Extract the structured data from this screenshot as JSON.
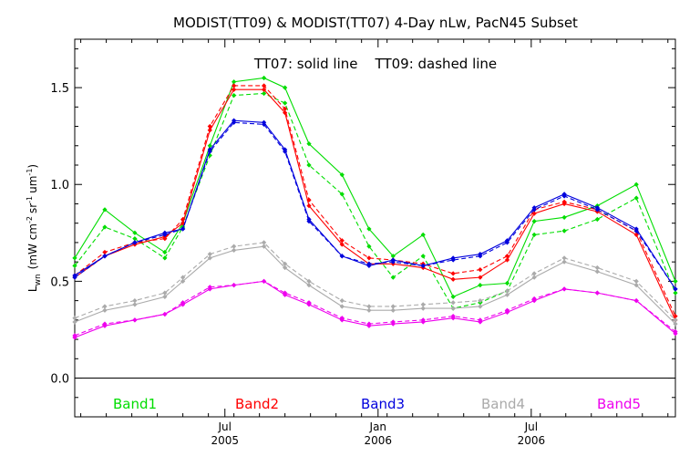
{
  "chart_data": {
    "type": "line",
    "title": "MODIST(TT09) & MODIST(TT07) 4-Day nLw, PacN45 Subset",
    "subtitle": "TT07: solid line    TT09: dashed line",
    "ylabel": "L_wn (mW cm^-2 sr^-1 um^-1)",
    "ylabel_main": "L",
    "ylabel_sub": "wn",
    "ylabel_unit_open": "(mW cm",
    "ylabel_exp1": "-2",
    "ylabel_unit_sr": "sr",
    "ylabel_exp2": "-1",
    "ylabel_unit_um": "um",
    "ylabel_exp3": "-1",
    "ylabel_unit_close": ")",
    "ylim": [
      -0.2,
      1.75
    ],
    "xlim": [
      0,
      20
    ],
    "yticks": [
      {
        "value": 0.0,
        "label": "0.0"
      },
      {
        "value": 0.5,
        "label": "0.5"
      },
      {
        "value": 1.0,
        "label": "1.0"
      },
      {
        "value": 1.5,
        "label": "1.5"
      }
    ],
    "xtick_labels": [
      {
        "pos": 5.0,
        "month": "Jul",
        "year": "2005"
      },
      {
        "pos": 10.1,
        "month": "Jan",
        "year": "2006"
      },
      {
        "pos": 15.2,
        "month": "Jul",
        "year": "2006"
      }
    ],
    "x": [
      0,
      1,
      2,
      3,
      3.6,
      4.5,
      5.3,
      6.3,
      7.0,
      7.8,
      8.9,
      9.8,
      10.6,
      11.6,
      12.6,
      13.5,
      14.4,
      15.3,
      16.3,
      17.4,
      18.7,
      20.0
    ],
    "series": [
      {
        "name": "Band1",
        "color": "#00dd00",
        "solid": [
          0.62,
          0.87,
          0.75,
          0.65,
          0.8,
          1.2,
          1.53,
          1.55,
          1.5,
          1.21,
          1.05,
          0.77,
          0.63,
          0.74,
          0.42,
          0.48,
          0.49,
          0.81,
          0.83,
          0.89,
          1.0,
          0.5
        ],
        "dashed": [
          0.58,
          0.78,
          0.72,
          0.62,
          0.78,
          1.15,
          1.46,
          1.47,
          1.42,
          1.1,
          0.95,
          0.68,
          0.52,
          0.63,
          0.36,
          0.39,
          0.45,
          0.74,
          0.76,
          0.82,
          0.93,
          0.44
        ]
      },
      {
        "name": "Band2",
        "color": "#ff0000",
        "solid": [
          0.52,
          0.63,
          0.69,
          0.73,
          0.8,
          1.28,
          1.49,
          1.49,
          1.37,
          0.89,
          0.69,
          0.59,
          0.59,
          0.57,
          0.51,
          0.52,
          0.61,
          0.85,
          0.9,
          0.86,
          0.74,
          0.3
        ],
        "dashed": [
          0.53,
          0.65,
          0.7,
          0.72,
          0.82,
          1.3,
          1.51,
          1.51,
          1.39,
          0.92,
          0.71,
          0.62,
          0.61,
          0.59,
          0.54,
          0.56,
          0.63,
          0.87,
          0.91,
          0.87,
          0.76,
          0.32
        ]
      },
      {
        "name": "Band3",
        "color": "#0000dd",
        "solid": [
          0.53,
          0.63,
          0.7,
          0.75,
          0.77,
          1.18,
          1.33,
          1.32,
          1.18,
          0.82,
          0.63,
          0.58,
          0.61,
          0.58,
          0.62,
          0.64,
          0.71,
          0.88,
          0.95,
          0.88,
          0.77,
          0.46
        ],
        "dashed": [
          0.52,
          0.63,
          0.7,
          0.74,
          0.77,
          1.17,
          1.32,
          1.31,
          1.17,
          0.81,
          0.63,
          0.59,
          0.6,
          0.58,
          0.61,
          0.63,
          0.7,
          0.87,
          0.94,
          0.87,
          0.76,
          0.46
        ]
      },
      {
        "name": "Band4",
        "color": "#aaaaaa",
        "solid": [
          0.29,
          0.35,
          0.38,
          0.42,
          0.5,
          0.62,
          0.66,
          0.68,
          0.57,
          0.48,
          0.37,
          0.35,
          0.35,
          0.36,
          0.36,
          0.37,
          0.43,
          0.52,
          0.6,
          0.55,
          0.48,
          0.28
        ],
        "dashed": [
          0.31,
          0.37,
          0.4,
          0.44,
          0.52,
          0.64,
          0.68,
          0.7,
          0.59,
          0.5,
          0.4,
          0.37,
          0.37,
          0.38,
          0.39,
          0.4,
          0.45,
          0.54,
          0.62,
          0.57,
          0.5,
          0.3
        ]
      },
      {
        "name": "Band5",
        "color": "#ee00ee",
        "solid": [
          0.21,
          0.27,
          0.3,
          0.33,
          0.38,
          0.46,
          0.48,
          0.5,
          0.43,
          0.38,
          0.3,
          0.27,
          0.28,
          0.29,
          0.31,
          0.29,
          0.34,
          0.4,
          0.46,
          0.44,
          0.4,
          0.23
        ],
        "dashed": [
          0.22,
          0.28,
          0.3,
          0.33,
          0.39,
          0.47,
          0.48,
          0.5,
          0.44,
          0.39,
          0.31,
          0.28,
          0.29,
          0.3,
          0.32,
          0.3,
          0.35,
          0.41,
          0.46,
          0.44,
          0.4,
          0.24
        ]
      }
    ],
    "legend_placement": "bottom, inside plot below zero line",
    "grid": false
  }
}
